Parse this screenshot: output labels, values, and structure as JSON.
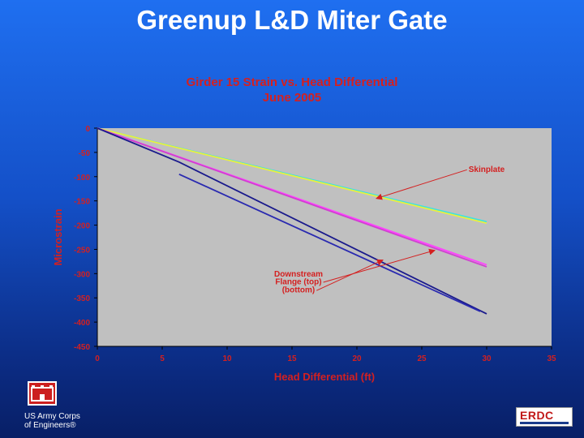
{
  "slide": {
    "title": "Greenup L&D Miter Gate"
  },
  "footer": {
    "org_line1": "US Army Corps",
    "org_line2": "of Engineers®",
    "logo_right_text": "ERDC"
  },
  "colors": {
    "title_red": "#d42020",
    "plot_bg": "#c0c0c0",
    "skinplate_cyan": "#40e0e0",
    "skinplate_yellow": "#e8f040",
    "flange_top": "#ff40ff",
    "flange_top_alt": "#d040d0",
    "flange_bottom": "#1a1a8c",
    "flange_bottom_alt": "#2a2ab0",
    "annotation": "#d42020"
  },
  "chart_data": {
    "type": "line",
    "title": "Girder 15 Strain vs. Head Differential",
    "subtitle": "June 2005",
    "xlabel": "Head Differential (ft)",
    "ylabel": "Microstrain",
    "xlim": [
      0,
      35
    ],
    "ylim": [
      -450,
      0
    ],
    "xticks": [
      0,
      5,
      10,
      15,
      20,
      25,
      30,
      35
    ],
    "yticks": [
      0,
      -50,
      -100,
      -150,
      -200,
      -250,
      -300,
      -350,
      -400,
      -450
    ],
    "grid": false,
    "series": [
      {
        "color": "#40e0e0",
        "x": [
          0,
          30
        ],
        "y": [
          0,
          -193
        ]
      },
      {
        "color": "#e8f040",
        "x": [
          0,
          30
        ],
        "y": [
          0,
          -196
        ]
      },
      {
        "color": "#ff40ff",
        "x": [
          0,
          30
        ],
        "y": [
          0,
          -282
        ]
      },
      {
        "color": "#d040d0",
        "x": [
          0,
          30
        ],
        "y": [
          0,
          -286
        ]
      },
      {
        "color": "#1a1a8c",
        "x": [
          0,
          6.3,
          30
        ],
        "y": [
          0,
          -70,
          -383
        ]
      },
      {
        "color": "#2a2ab0",
        "x": [
          6.3,
          29.5
        ],
        "y": [
          -95,
          -378
        ]
      }
    ],
    "annotations": [
      {
        "text": "Skinplate",
        "x": 30,
        "y": -90,
        "target_x": 21.5,
        "target_y": -145
      },
      {
        "text": "Downstream",
        "x": 15.5,
        "y": -306
      },
      {
        "text": "Flange (top)",
        "x": 15.5,
        "y": -322,
        "target_x": 26,
        "target_y": -252
      },
      {
        "text": "(bottom)",
        "x": 15.5,
        "y": -339,
        "target_x": 22,
        "target_y": -272
      }
    ]
  }
}
